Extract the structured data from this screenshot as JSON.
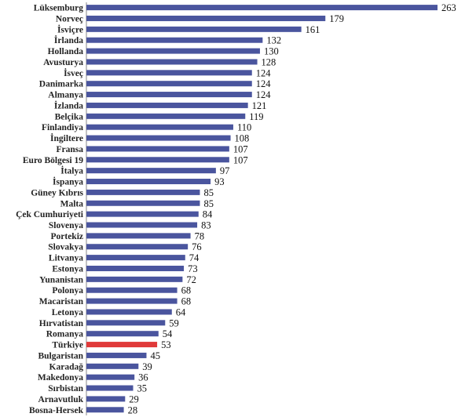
{
  "chart_data": {
    "type": "bar",
    "orientation": "horizontal",
    "title_fragment": "(     )",
    "categories": [
      "Lüksemburg",
      "Norveç",
      "İsviçre",
      "İrlanda",
      "Hollanda",
      "Avusturya",
      "İsveç",
      "Danimarka",
      "Almanya",
      "İzlanda",
      "Belçika",
      "Finlandiya",
      "İngiltere",
      "Fransa",
      "Euro Bölgesi 19",
      "İtalya",
      "İspanya",
      "Güney Kıbrıs",
      "Malta",
      "Çek Cumhuriyeti",
      "Slovenya",
      "Portekiz",
      "Slovakya",
      "Litvanya",
      "Estonya",
      "Yunanistan",
      "Polonya",
      "Macaristan",
      "Letonya",
      "Hırvatistan",
      "Romanya",
      "Türkiye",
      "Bulgaristan",
      "Karadağ",
      "Makedonya",
      "Sırbistan",
      "Arnavutluk",
      "Bosna-Hersek"
    ],
    "values": [
      263,
      179,
      161,
      132,
      130,
      128,
      124,
      124,
      124,
      121,
      119,
      110,
      108,
      107,
      107,
      97,
      93,
      85,
      85,
      84,
      83,
      78,
      76,
      74,
      73,
      72,
      68,
      68,
      64,
      59,
      54,
      53,
      45,
      39,
      36,
      35,
      29,
      28
    ],
    "xlim": [
      0,
      263
    ],
    "grid": false,
    "bar_color": "#4a559e",
    "highlight": {
      "category": "Türkiye",
      "color": "#e03a3a"
    },
    "axis_color": "#888888"
  }
}
